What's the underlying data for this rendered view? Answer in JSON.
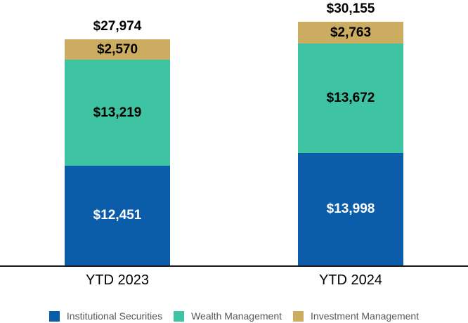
{
  "chart_data": {
    "type": "bar",
    "stacked": true,
    "title": "",
    "xlabel": "",
    "ylabel": "",
    "categories": [
      "YTD 2023",
      "YTD 2024"
    ],
    "series": [
      {
        "name": "Institutional Securities",
        "color": "#0B5DA9",
        "values": [
          12451,
          13998
        ],
        "labels": [
          "$12,451",
          "$13,998"
        ]
      },
      {
        "name": "Wealth Management",
        "color": "#3EC3A3",
        "values": [
          13219,
          13672
        ],
        "labels": [
          "$13,219",
          "$13,672"
        ]
      },
      {
        "name": "Investment Management",
        "color": "#CBAC60",
        "values": [
          2570,
          2763
        ],
        "labels": [
          "$2,570",
          "$2,763"
        ]
      }
    ],
    "totals": [
      27974,
      30155
    ],
    "total_labels": [
      "$27,974",
      "$30,155"
    ],
    "legend_position": "bottom",
    "grid": false,
    "ylim": [
      0,
      30155
    ],
    "axis_line_color": "#1a1a1a"
  }
}
